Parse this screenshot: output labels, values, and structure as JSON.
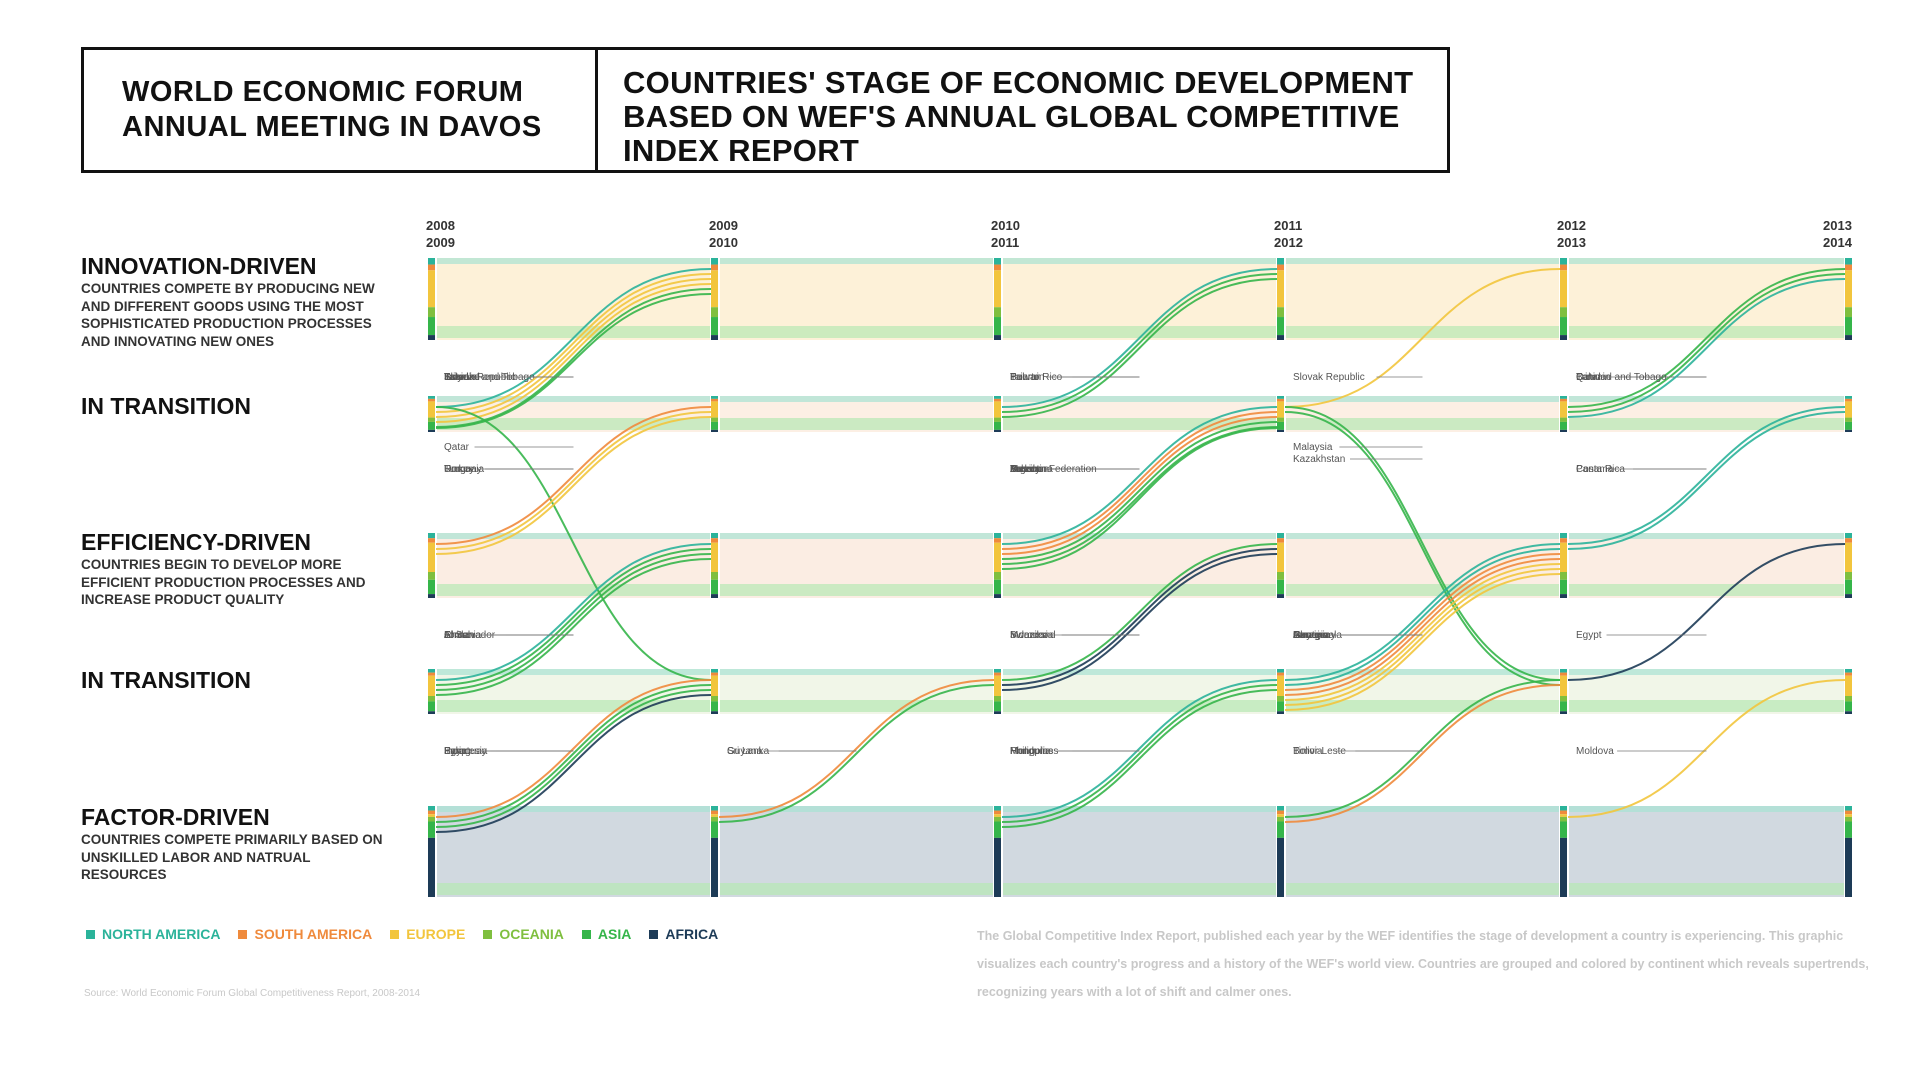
{
  "header": {
    "event_lines": [
      "WORLD ECONOMIC FORUM",
      "ANNUAL MEETING IN DAVOS"
    ],
    "title_lines": [
      "COUNTRIES' STAGE OF ECONOMIC DEVELOPMENT",
      "BASED ON WEF'S ANNUAL GLOBAL COMPETITIVE",
      "INDEX REPORT"
    ]
  },
  "stages": [
    {
      "title": "INNOVATION-DRIVEN",
      "desc": "COUNTRIES COMPETE BY PRODUCING NEW AND DIFFERENT GOODS USING THE MOST SOPHISTICATED PRODUCTION PROCESSES AND INNOVATING NEW ONES"
    },
    {
      "title": "IN TRANSITION",
      "desc": ""
    },
    {
      "title": "EFFICIENCY-DRIVEN",
      "desc": "COUNTRIES BEGIN TO DEVELOP MORE EFFICIENT PRODUCTION PROCESSES AND INCREASE PRODUCT QUALITY"
    },
    {
      "title": "IN TRANSITION",
      "desc": ""
    },
    {
      "title": "FACTOR-DRIVEN",
      "desc": "COUNTRIES COMPETE PRIMARILY BASED ON UNSKILLED LABOR AND NATRUAL RESOURCES"
    }
  ],
  "years": [
    {
      "line1": "2008",
      "line2": "2009"
    },
    {
      "line1": "2009",
      "line2": "2010"
    },
    {
      "line1": "2010",
      "line2": "2011"
    },
    {
      "line1": "2011",
      "line2": "2012"
    },
    {
      "line1": "2012",
      "line2": "2013"
    },
    {
      "line1": "2013",
      "line2": "2014"
    }
  ],
  "legend": [
    {
      "label": "NORTH AMERICA",
      "color": "#2bb39a"
    },
    {
      "label": "SOUTH AMERICA",
      "color": "#ef8a3c"
    },
    {
      "label": "EUROPE",
      "color": "#f2c53d"
    },
    {
      "label": "OCEANIA",
      "color": "#7fbf3f"
    },
    {
      "label": "ASIA",
      "color": "#35b54a"
    },
    {
      "label": "AFRICA",
      "color": "#1d3b57"
    }
  ],
  "source": "Source: World Economic Forum Global Competitiveness Report, 2008-2014",
  "description": "The Global Competitive Index Report, published each year by the WEF identifies the stage of development a country is experiencing. This graphic visualizes each country's progress and a history of the WEF's world view. Countries are grouped and colored by continent which reveals supertrends, recognizing years with a lot of shift and calmer ones.",
  "transitions": [
    {
      "country": "Trinidad and Tobago",
      "from_year": "2008/2009",
      "from": "IN TRANSITION",
      "to": "INNOVATION-DRIVEN",
      "continent": "NORTH AMERICA"
    },
    {
      "country": "Italy",
      "from_year": "2008/2009",
      "from": "IN TRANSITION",
      "to": "INNOVATION-DRIVEN",
      "continent": "EUROPE"
    },
    {
      "country": "Estonia",
      "from_year": "2008/2009",
      "from": "IN TRANSITION",
      "to": "INNOVATION-DRIVEN",
      "continent": "EUROPE"
    },
    {
      "country": "Slovak Republic",
      "from_year": "2008/2009",
      "from": "IN TRANSITION",
      "to": "INNOVATION-DRIVEN",
      "continent": "EUROPE"
    },
    {
      "country": "Taiwan",
      "from_year": "2008/2009",
      "from": "IN TRANSITION",
      "to": "INNOVATION-DRIVEN",
      "continent": "ASIA"
    },
    {
      "country": "Israel",
      "from_year": "2008/2009",
      "from": "IN TRANSITION",
      "to": "INNOVATION-DRIVEN",
      "continent": "ASIA"
    },
    {
      "country": "Qatar",
      "from_year": "2008/2009",
      "from": "IN TRANSITION",
      "to": "IN TRANSITION",
      "continent": "ASIA"
    },
    {
      "country": "Uruguay",
      "from_year": "2008/2009",
      "from": "EFFICIENCY-DRIVEN",
      "to": "IN TRANSITION",
      "continent": "SOUTH AMERICA"
    },
    {
      "country": "Romania",
      "from_year": "2008/2009",
      "from": "EFFICIENCY-DRIVEN",
      "to": "IN TRANSITION",
      "continent": "EUROPE"
    },
    {
      "country": "Turkey",
      "from_year": "2008/2009",
      "from": "EFFICIENCY-DRIVEN",
      "to": "IN TRANSITION",
      "continent": "EUROPE"
    },
    {
      "country": "El Salvador",
      "from_year": "2008/2009",
      "from": "IN TRANSITION",
      "to": "EFFICIENCY-DRIVEN",
      "continent": "NORTH AMERICA"
    },
    {
      "country": "Armenia",
      "from_year": "2008/2009",
      "from": "IN TRANSITION",
      "to": "EFFICIENCY-DRIVEN",
      "continent": "ASIA"
    },
    {
      "country": "Jordan",
      "from_year": "2008/2009",
      "from": "IN TRANSITION",
      "to": "EFFICIENCY-DRIVEN",
      "continent": "ASIA"
    },
    {
      "country": "China",
      "from_year": "2008/2009",
      "from": "IN TRANSITION",
      "to": "EFFICIENCY-DRIVEN",
      "continent": "ASIA"
    },
    {
      "country": "Paraguay",
      "from_year": "2008/2009",
      "from": "FACTOR-DRIVEN",
      "to": "IN TRANSITION",
      "continent": "SOUTH AMERICA"
    },
    {
      "country": "Indonesia",
      "from_year": "2008/2009",
      "from": "FACTOR-DRIVEN",
      "to": "IN TRANSITION",
      "continent": "ASIA"
    },
    {
      "country": "Syria",
      "from_year": "2008/2009",
      "from": "FACTOR-DRIVEN",
      "to": "IN TRANSITION",
      "continent": "ASIA"
    },
    {
      "country": "Egypt",
      "from_year": "2008/2009",
      "from": "FACTOR-DRIVEN",
      "to": "IN TRANSITION",
      "continent": "AFRICA"
    },
    {
      "country": "Guyana",
      "from_year": "2009/2010",
      "from": "FACTOR-DRIVEN",
      "to": "IN TRANSITION",
      "continent": "SOUTH AMERICA"
    },
    {
      "country": "Sri Lanka",
      "from_year": "2009/2010",
      "from": "FACTOR-DRIVEN",
      "to": "IN TRANSITION",
      "continent": "ASIA"
    },
    {
      "country": "Puerto Rico",
      "from_year": "2010/2011",
      "from": "IN TRANSITION",
      "to": "INNOVATION-DRIVEN",
      "continent": "NORTH AMERICA"
    },
    {
      "country": "Bahrain",
      "from_year": "2010/2011",
      "from": "IN TRANSITION",
      "to": "INNOVATION-DRIVEN",
      "continent": "ASIA"
    },
    {
      "country": "Taiwan",
      "from_year": "2010/2011",
      "from": "IN TRANSITION",
      "to": "INNOVATION-DRIVEN",
      "continent": "ASIA"
    },
    {
      "country": "Mexico",
      "from_year": "2010/2011",
      "from": "EFFICIENCY-DRIVEN",
      "to": "IN TRANSITION",
      "continent": "NORTH AMERICA"
    },
    {
      "country": "Argentina",
      "from_year": "2010/2011",
      "from": "EFFICIENCY-DRIVEN",
      "to": "IN TRANSITION",
      "continent": "SOUTH AMERICA"
    },
    {
      "country": "Brazil",
      "from_year": "2010/2011",
      "from": "EFFICIENCY-DRIVEN",
      "to": "IN TRANSITION",
      "continent": "SOUTH AMERICA"
    },
    {
      "country": "Turkey",
      "from_year": "2010/2011",
      "from": "EFFICIENCY-DRIVEN",
      "to": "IN TRANSITION",
      "continent": "ASIA"
    },
    {
      "country": "Lebanon",
      "from_year": "2010/2011",
      "from": "EFFICIENCY-DRIVEN",
      "to": "IN TRANSITION",
      "continent": "ASIA"
    },
    {
      "country": "Russian Federation",
      "from_year": "2010/2011",
      "from": "EFFICIENCY-DRIVEN",
      "to": "IN TRANSITION",
      "continent": "ASIA"
    },
    {
      "country": "Indonesia",
      "from_year": "2010/2011",
      "from": "IN TRANSITION",
      "to": "EFFICIENCY-DRIVEN",
      "continent": "ASIA"
    },
    {
      "country": "Morocco",
      "from_year": "2010/2011",
      "from": "IN TRANSITION",
      "to": "EFFICIENCY-DRIVEN",
      "continent": "AFRICA"
    },
    {
      "country": "Swaziland",
      "from_year": "2010/2011",
      "from": "IN TRANSITION",
      "to": "EFFICIENCY-DRIVEN",
      "continent": "AFRICA"
    },
    {
      "country": "Honduras",
      "from_year": "2010/2011",
      "from": "FACTOR-DRIVEN",
      "to": "IN TRANSITION",
      "continent": "NORTH AMERICA"
    },
    {
      "country": "Philippines",
      "from_year": "2010/2011",
      "from": "FACTOR-DRIVEN",
      "to": "IN TRANSITION",
      "continent": "ASIA"
    },
    {
      "country": "Mongolia",
      "from_year": "2010/2011",
      "from": "FACTOR-DRIVEN",
      "to": "IN TRANSITION",
      "continent": "ASIA"
    },
    {
      "country": "Slovak Republic",
      "from_year": "2011/2012",
      "from": "IN TRANSITION",
      "to": "INNOVATION-DRIVEN",
      "continent": "EUROPE"
    },
    {
      "country": "Malaysia",
      "from_year": "2011/2012",
      "from": "IN TRANSITION",
      "to": "IN TRANSITION",
      "continent": "ASIA"
    },
    {
      "country": "Kazakhstan",
      "from_year": "2011/2012",
      "from": "IN TRANSITION",
      "to": "IN TRANSITION",
      "continent": "ASIA"
    },
    {
      "country": "Guatemala",
      "from_year": "2011/2012",
      "from": "IN TRANSITION",
      "to": "EFFICIENCY-DRIVEN",
      "continent": "NORTH AMERICA"
    },
    {
      "country": "Jamaica",
      "from_year": "2011/2012",
      "from": "IN TRANSITION",
      "to": "EFFICIENCY-DRIVEN",
      "continent": "NORTH AMERICA"
    },
    {
      "country": "Guyana",
      "from_year": "2011/2012",
      "from": "IN TRANSITION",
      "to": "EFFICIENCY-DRIVEN",
      "continent": "SOUTH AMERICA"
    },
    {
      "country": "Paraguay",
      "from_year": "2011/2012",
      "from": "IN TRANSITION",
      "to": "EFFICIENCY-DRIVEN",
      "continent": "SOUTH AMERICA"
    },
    {
      "country": "Georgia",
      "from_year": "2011/2012",
      "from": "IN TRANSITION",
      "to": "EFFICIENCY-DRIVEN",
      "continent": "EUROPE"
    },
    {
      "country": "Ukraine",
      "from_year": "2011/2012",
      "from": "IN TRANSITION",
      "to": "EFFICIENCY-DRIVEN",
      "continent": "EUROPE"
    },
    {
      "country": "Armenia",
      "from_year": "2011/2012",
      "from": "IN TRANSITION",
      "to": "EFFICIENCY-DRIVEN",
      "continent": "EUROPE"
    },
    {
      "country": "Timor-Leste",
      "from_year": "2011/2012",
      "from": "FACTOR-DRIVEN",
      "to": "IN TRANSITION",
      "continent": "ASIA"
    },
    {
      "country": "Bolivia",
      "from_year": "2011/2012",
      "from": "FACTOR-DRIVEN",
      "to": "IN TRANSITION",
      "continent": "SOUTH AMERICA"
    },
    {
      "country": "Bahrain",
      "from_year": "2012/2013",
      "from": "IN TRANSITION",
      "to": "INNOVATION-DRIVEN",
      "continent": "ASIA"
    },
    {
      "country": "Panama",
      "from_year": "2012/2013",
      "from": "EFFICIENCY-DRIVEN",
      "to": "IN TRANSITION",
      "continent": "NORTH AMERICA"
    },
    {
      "country": "Costa Rica",
      "from_year": "2012/2013",
      "from": "EFFICIENCY-DRIVEN",
      "to": "IN TRANSITION",
      "continent": "NORTH AMERICA"
    },
    {
      "country": "Qatar",
      "from_year": "2012/2013",
      "from": "IN TRANSITION",
      "to": "INNOVATION-DRIVEN",
      "continent": "ASIA"
    },
    {
      "country": "Egypt",
      "from_year": "2012/2013",
      "from": "IN TRANSITION",
      "to": "EFFICIENCY-DRIVEN",
      "continent": "AFRICA"
    },
    {
      "country": "Moldova",
      "from_year": "2012/2013",
      "from": "FACTOR-DRIVEN",
      "to": "IN TRANSITION",
      "continent": "EUROPE"
    },
    {
      "country": "Trinidad and Tobago",
      "from_year": "2012/2013",
      "from": "IN TRANSITION",
      "to": "INNOVATION-DRIVEN",
      "continent": "NORTH AMERICA"
    }
  ]
}
